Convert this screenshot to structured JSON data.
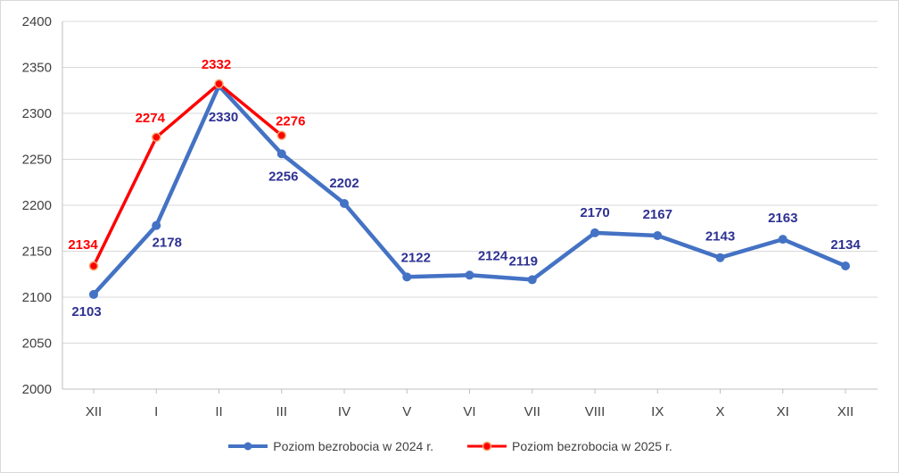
{
  "chart_data": {
    "type": "line",
    "categories": [
      "XII",
      "I",
      "II",
      "III",
      "IV",
      "V",
      "VI",
      "VII",
      "VIII",
      "IX",
      "X",
      "XI",
      "XII"
    ],
    "ylim": [
      2000,
      2400
    ],
    "yticks": [
      2000,
      2050,
      2100,
      2150,
      2200,
      2250,
      2300,
      2350,
      2400
    ],
    "grid": true,
    "legend": "bottom",
    "series": [
      {
        "name": "Poziom bezrobocia w 2024 r.",
        "color": "#4472c4",
        "label_color": "#2e3192",
        "values": [
          2103,
          2178,
          2330,
          2256,
          2202,
          2122,
          2124,
          2119,
          2170,
          2167,
          2143,
          2163,
          2134
        ]
      },
      {
        "name": "Poziom bezrobocia w 2025 r.",
        "color": "#ff0000",
        "label_color": "#ff0000",
        "values": [
          2134,
          2274,
          2332,
          2276,
          null,
          null,
          null,
          null,
          null,
          null,
          null,
          null,
          null
        ]
      }
    ]
  }
}
